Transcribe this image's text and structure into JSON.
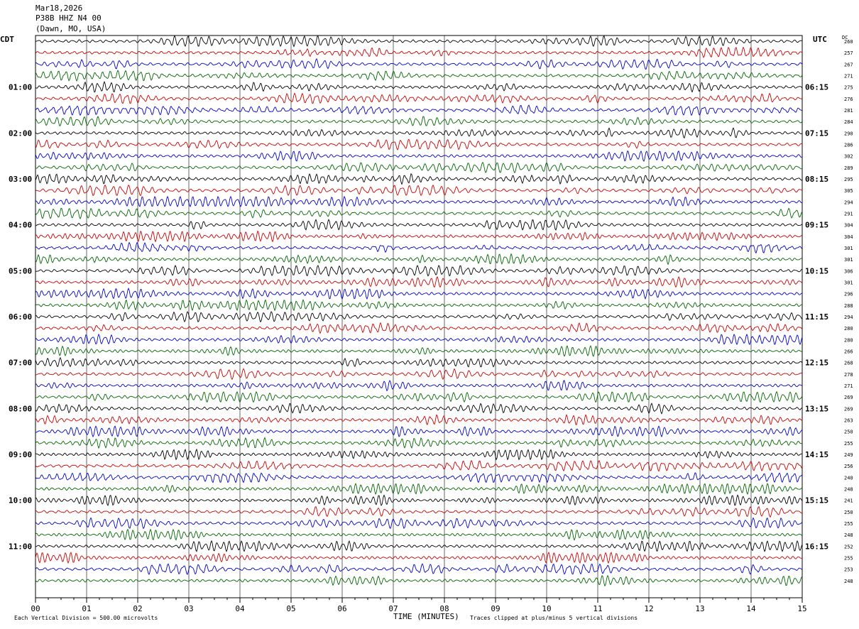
{
  "header": {
    "date": "Mar18,2026",
    "station": "P38B HHZ N4 00",
    "location": "(Dawn, MO, USA)"
  },
  "left_timezone": "CDT",
  "right_timezone": "UTC",
  "dc_label": "DC",
  "footer": {
    "scale_note": "Each Vertical Division =  500.00 microvolts",
    "clip_note": "Traces clipped at plus/minus 5 vertical divisions"
  },
  "colors": [
    "#000000",
    "#cc0000",
    "#0000cc",
    "#006600"
  ],
  "chart_data": {
    "type": "line",
    "title": "",
    "xlabel": "TIME (MINUTES)",
    "ylabel": "",
    "xlim": [
      0,
      15
    ],
    "x_ticks": [
      "00",
      "01",
      "02",
      "03",
      "04",
      "05",
      "06",
      "07",
      "08",
      "09",
      "10",
      "11",
      "12",
      "13",
      "14",
      "15"
    ],
    "rows": 48,
    "left_time_labels": [
      {
        "row": 4,
        "label": "01:00"
      },
      {
        "row": 8,
        "label": "02:00"
      },
      {
        "row": 12,
        "label": "03:00"
      },
      {
        "row": 16,
        "label": "04:00"
      },
      {
        "row": 20,
        "label": "05:00"
      },
      {
        "row": 24,
        "label": "06:00"
      },
      {
        "row": 28,
        "label": "07:00"
      },
      {
        "row": 32,
        "label": "08:00"
      },
      {
        "row": 36,
        "label": "09:00"
      },
      {
        "row": 40,
        "label": "10:00"
      },
      {
        "row": 44,
        "label": "11:00"
      }
    ],
    "right_time_labels": [
      {
        "row": 4,
        "label": "06:15"
      },
      {
        "row": 8,
        "label": "07:15"
      },
      {
        "row": 12,
        "label": "08:15"
      },
      {
        "row": 16,
        "label": "09:15"
      },
      {
        "row": 20,
        "label": "10:15"
      },
      {
        "row": 24,
        "label": "11:15"
      },
      {
        "row": 28,
        "label": "12:15"
      },
      {
        "row": 32,
        "label": "13:15"
      },
      {
        "row": 36,
        "label": "14:15"
      },
      {
        "row": 40,
        "label": "15:15"
      },
      {
        "row": 44,
        "label": "16:15"
      }
    ],
    "dc_offsets": [
      260,
      257,
      267,
      271,
      275,
      276,
      281,
      284,
      290,
      286,
      302,
      289,
      295,
      305,
      294,
      291,
      304,
      304,
      301,
      301,
      306,
      301,
      296,
      288,
      294,
      280,
      280,
      266,
      268,
      278,
      271,
      269,
      269,
      263,
      250,
      255,
      249,
      256,
      240,
      248,
      241,
      250,
      255,
      248,
      252,
      255,
      253,
      248
    ]
  }
}
